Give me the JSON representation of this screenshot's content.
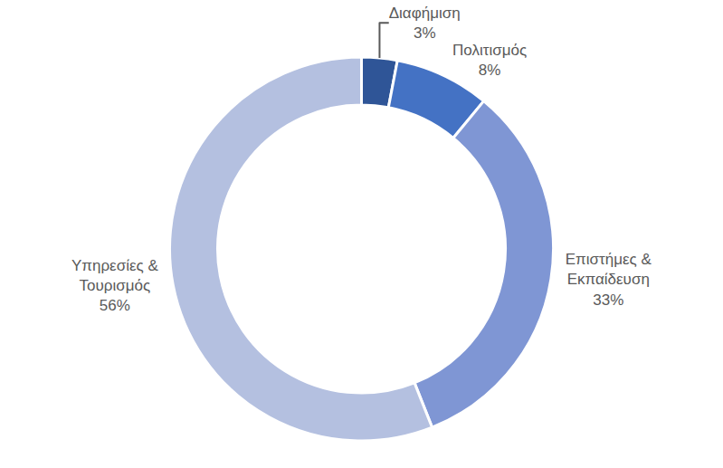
{
  "chart_data": {
    "type": "pie",
    "categories": [
      "Διαφήμιση",
      "Πολιτισμός",
      "Επιστήμες & Εκπαίδευση",
      "Υπηρεσίες & Τουρισμός"
    ],
    "values": [
      3,
      8,
      33,
      56
    ],
    "value_labels": [
      "3%",
      "8%",
      "33%",
      "56%"
    ],
    "colors": [
      "#2f5597",
      "#4472c4",
      "#7f96d4",
      "#b4c0e0"
    ],
    "data_labels": true
  }
}
